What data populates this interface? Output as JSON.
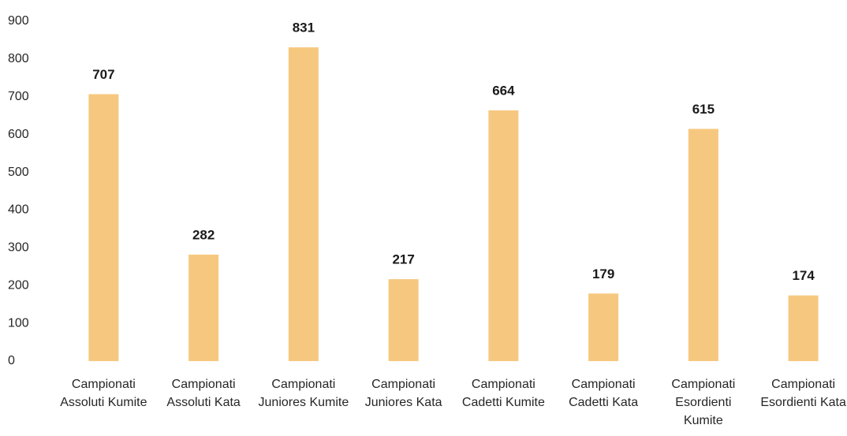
{
  "chart_data": {
    "type": "bar",
    "categories": [
      "Campionati Assoluti Kumite",
      "Campionati Assoluti Kata",
      "Campionati Juniores Kumite",
      "Campionati Juniores Kata",
      "Campionati Cadetti Kumite",
      "Campionati Cadetti Kata",
      "Campionati Esordienti Kumite",
      "Campionati Esordienti Kata"
    ],
    "values": [
      707,
      282,
      831,
      217,
      664,
      179,
      615,
      174
    ],
    "color": "#f6c87f",
    "ylim": [
      0,
      900
    ],
    "yticks": [
      0,
      100,
      200,
      300,
      400,
      500,
      600,
      700,
      800,
      900
    ],
    "grid": false
  }
}
